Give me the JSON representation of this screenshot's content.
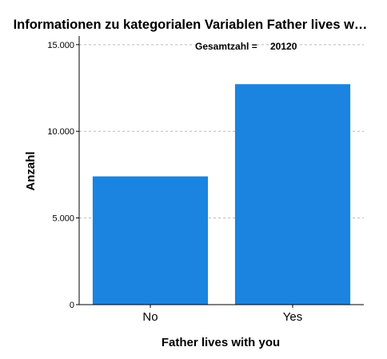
{
  "chart_data": {
    "type": "bar",
    "title": "Informationen zu kategorialen Variablen Father lives w…",
    "xlabel": "Father lives with you",
    "ylabel": "Anzahl",
    "categories": [
      "No",
      "Yes"
    ],
    "values": [
      7400,
      12720
    ],
    "ylim": [
      0,
      15500
    ],
    "yticks": [
      0,
      5000,
      10000,
      15000
    ],
    "ytick_labels": [
      "0",
      "5.000",
      "10.000",
      "15.000"
    ],
    "grid": true,
    "bar_color": "#1a84e0",
    "grid_color": "#b9b9b9",
    "annotation": {
      "label": "Gesamtzahl =",
      "value": "20120"
    }
  }
}
